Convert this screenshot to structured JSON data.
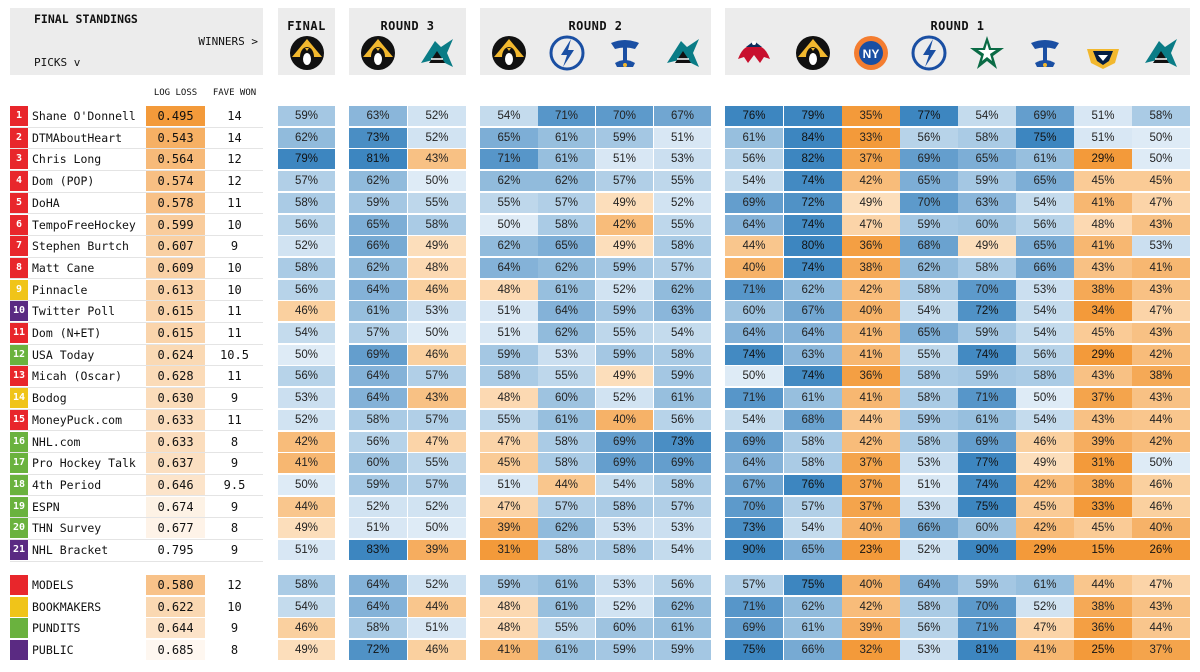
{
  "header": {
    "title": "FINAL STANDINGS",
    "winners_label": "WINNERS >",
    "picks_label": "PICKS v",
    "rounds": [
      "FINAL",
      "ROUND 3",
      "ROUND 2",
      "ROUND 1"
    ],
    "col_log_loss": "LOG LOSS",
    "col_fave_won": "FAVE WON"
  },
  "teams": {
    "final": [
      "penguins"
    ],
    "round3": [
      "penguins",
      "sharks"
    ],
    "round2": [
      "penguins",
      "lightning",
      "blues",
      "sharks"
    ],
    "round1": [
      "capitals",
      "penguins",
      "islanders",
      "lightning",
      "stars",
      "blues",
      "predators",
      "sharks"
    ]
  },
  "colors": {
    "rank_red": "#e8262b",
    "rank_yellow": "#f0c419",
    "rank_purple": "#5a2a82",
    "rank_green": "#6ab23e",
    "blue_dark": "#3d86c0",
    "orange_dark": "#f39a3a",
    "header_bg": "#ececec"
  },
  "chart_data": {
    "type": "table",
    "title": "FINAL STANDINGS",
    "columns": [
      "Rank",
      "Name",
      "LOG LOSS",
      "FAVE WON",
      "FINAL",
      "ROUND 3 (2)",
      "ROUND 2 (4)",
      "ROUND 1 (8)"
    ],
    "rows": [
      {
        "rank": "1",
        "name": "Shane O'Donnell",
        "log_loss": "0.495",
        "fave_won": "14",
        "group": "red",
        "final": [
          "59%"
        ],
        "r3": [
          "63%",
          "52%"
        ],
        "r2": [
          "54%",
          "71%",
          "70%",
          "67%"
        ],
        "r1": [
          "76%",
          "79%",
          "35%",
          "77%",
          "54%",
          "69%",
          "51%",
          "58%"
        ]
      },
      {
        "rank": "2",
        "name": "DTMAboutHeart",
        "log_loss": "0.543",
        "fave_won": "14",
        "group": "red",
        "final": [
          "62%"
        ],
        "r3": [
          "73%",
          "52%"
        ],
        "r2": [
          "65%",
          "61%",
          "59%",
          "51%"
        ],
        "r1": [
          "61%",
          "84%",
          "33%",
          "56%",
          "58%",
          "75%",
          "51%",
          "50%"
        ]
      },
      {
        "rank": "3",
        "name": "Chris Long",
        "log_loss": "0.564",
        "fave_won": "12",
        "group": "red",
        "final": [
          "79%"
        ],
        "r3": [
          "81%",
          "43%"
        ],
        "r2": [
          "71%",
          "61%",
          "51%",
          "53%"
        ],
        "r1": [
          "56%",
          "82%",
          "37%",
          "69%",
          "65%",
          "61%",
          "29%",
          "50%"
        ]
      },
      {
        "rank": "4",
        "name": "Dom (POP)",
        "log_loss": "0.574",
        "fave_won": "12",
        "group": "red",
        "final": [
          "57%"
        ],
        "r3": [
          "62%",
          "50%"
        ],
        "r2": [
          "62%",
          "62%",
          "57%",
          "55%"
        ],
        "r1": [
          "54%",
          "74%",
          "42%",
          "65%",
          "59%",
          "65%",
          "45%",
          "45%"
        ]
      },
      {
        "rank": "5",
        "name": "DoHA",
        "log_loss": "0.578",
        "fave_won": "11",
        "group": "red",
        "final": [
          "58%"
        ],
        "r3": [
          "59%",
          "55%"
        ],
        "r2": [
          "55%",
          "57%",
          "49%",
          "52%"
        ],
        "r1": [
          "69%",
          "72%",
          "49%",
          "70%",
          "63%",
          "54%",
          "41%",
          "47%"
        ]
      },
      {
        "rank": "6",
        "name": "TempoFreeHockey",
        "log_loss": "0.599",
        "fave_won": "10",
        "group": "red",
        "final": [
          "56%"
        ],
        "r3": [
          "65%",
          "58%"
        ],
        "r2": [
          "50%",
          "58%",
          "42%",
          "55%"
        ],
        "r1": [
          "64%",
          "74%",
          "47%",
          "59%",
          "60%",
          "56%",
          "48%",
          "43%"
        ]
      },
      {
        "rank": "7",
        "name": "Stephen Burtch",
        "log_loss": "0.607",
        "fave_won": "9",
        "group": "red",
        "final": [
          "52%"
        ],
        "r3": [
          "66%",
          "49%"
        ],
        "r2": [
          "62%",
          "65%",
          "49%",
          "58%"
        ],
        "r1": [
          "44%",
          "80%",
          "36%",
          "68%",
          "49%",
          "65%",
          "41%",
          "53%"
        ]
      },
      {
        "rank": "8",
        "name": "Matt Cane",
        "log_loss": "0.609",
        "fave_won": "10",
        "group": "red",
        "final": [
          "58%"
        ],
        "r3": [
          "62%",
          "48%"
        ],
        "r2": [
          "64%",
          "62%",
          "59%",
          "57%"
        ],
        "r1": [
          "40%",
          "74%",
          "38%",
          "62%",
          "58%",
          "66%",
          "43%",
          "41%"
        ]
      },
      {
        "rank": "9",
        "name": "Pinnacle",
        "log_loss": "0.613",
        "fave_won": "10",
        "group": "yellow",
        "final": [
          "56%"
        ],
        "r3": [
          "64%",
          "46%"
        ],
        "r2": [
          "48%",
          "61%",
          "52%",
          "62%"
        ],
        "r1": [
          "71%",
          "62%",
          "42%",
          "58%",
          "70%",
          "53%",
          "38%",
          "43%"
        ]
      },
      {
        "rank": "10",
        "name": "Twitter Poll",
        "log_loss": "0.615",
        "fave_won": "11",
        "group": "purple",
        "final": [
          "46%"
        ],
        "r3": [
          "61%",
          "53%"
        ],
        "r2": [
          "51%",
          "64%",
          "59%",
          "63%"
        ],
        "r1": [
          "60%",
          "67%",
          "40%",
          "54%",
          "72%",
          "54%",
          "34%",
          "47%"
        ]
      },
      {
        "rank": "11",
        "name": "Dom (N+ET)",
        "log_loss": "0.615",
        "fave_won": "11",
        "group": "red",
        "final": [
          "54%"
        ],
        "r3": [
          "57%",
          "50%"
        ],
        "r2": [
          "51%",
          "62%",
          "55%",
          "54%"
        ],
        "r1": [
          "64%",
          "64%",
          "41%",
          "65%",
          "59%",
          "54%",
          "45%",
          "43%"
        ]
      },
      {
        "rank": "12",
        "name": "USA Today",
        "log_loss": "0.624",
        "fave_won": "10.5",
        "group": "green",
        "final": [
          "50%"
        ],
        "r3": [
          "69%",
          "46%"
        ],
        "r2": [
          "59%",
          "53%",
          "59%",
          "58%"
        ],
        "r1": [
          "74%",
          "63%",
          "41%",
          "55%",
          "74%",
          "56%",
          "29%",
          "42%"
        ]
      },
      {
        "rank": "13",
        "name": "Micah (Oscar)",
        "log_loss": "0.628",
        "fave_won": "11",
        "group": "red",
        "final": [
          "56%"
        ],
        "r3": [
          "64%",
          "57%"
        ],
        "r2": [
          "58%",
          "55%",
          "49%",
          "59%"
        ],
        "r1": [
          "50%",
          "74%",
          "36%",
          "58%",
          "59%",
          "58%",
          "43%",
          "38%"
        ]
      },
      {
        "rank": "14",
        "name": "Bodog",
        "log_loss": "0.630",
        "fave_won": "9",
        "group": "yellow",
        "final": [
          "53%"
        ],
        "r3": [
          "64%",
          "43%"
        ],
        "r2": [
          "48%",
          "60%",
          "52%",
          "61%"
        ],
        "r1": [
          "71%",
          "61%",
          "41%",
          "58%",
          "71%",
          "50%",
          "37%",
          "43%"
        ]
      },
      {
        "rank": "15",
        "name": "MoneyPuck.com",
        "log_loss": "0.633",
        "fave_won": "11",
        "group": "red",
        "final": [
          "52%"
        ],
        "r3": [
          "58%",
          "57%"
        ],
        "r2": [
          "55%",
          "61%",
          "40%",
          "56%"
        ],
        "r1": [
          "54%",
          "68%",
          "44%",
          "59%",
          "61%",
          "54%",
          "43%",
          "44%"
        ]
      },
      {
        "rank": "16",
        "name": "NHL.com",
        "log_loss": "0.633",
        "fave_won": "8",
        "group": "green",
        "final": [
          "42%"
        ],
        "r3": [
          "56%",
          "47%"
        ],
        "r2": [
          "47%",
          "58%",
          "69%",
          "73%"
        ],
        "r1": [
          "69%",
          "58%",
          "42%",
          "58%",
          "69%",
          "46%",
          "39%",
          "42%"
        ]
      },
      {
        "rank": "17",
        "name": "Pro Hockey Talk",
        "log_loss": "0.637",
        "fave_won": "9",
        "group": "green",
        "final": [
          "41%"
        ],
        "r3": [
          "60%",
          "55%"
        ],
        "r2": [
          "45%",
          "58%",
          "69%",
          "69%"
        ],
        "r1": [
          "64%",
          "58%",
          "37%",
          "53%",
          "77%",
          "49%",
          "31%",
          "50%"
        ]
      },
      {
        "rank": "18",
        "name": "4th Period",
        "log_loss": "0.646",
        "fave_won": "9.5",
        "group": "green",
        "final": [
          "50%"
        ],
        "r3": [
          "59%",
          "57%"
        ],
        "r2": [
          "51%",
          "44%",
          "54%",
          "58%"
        ],
        "r1": [
          "67%",
          "76%",
          "37%",
          "51%",
          "74%",
          "42%",
          "38%",
          "46%"
        ]
      },
      {
        "rank": "19",
        "name": "ESPN",
        "log_loss": "0.674",
        "fave_won": "9",
        "group": "green",
        "final": [
          "44%"
        ],
        "r3": [
          "52%",
          "52%"
        ],
        "r2": [
          "47%",
          "57%",
          "58%",
          "57%"
        ],
        "r1": [
          "70%",
          "57%",
          "37%",
          "53%",
          "75%",
          "45%",
          "33%",
          "46%"
        ]
      },
      {
        "rank": "20",
        "name": "THN Survey",
        "log_loss": "0.677",
        "fave_won": "8",
        "group": "green",
        "final": [
          "49%"
        ],
        "r3": [
          "51%",
          "50%"
        ],
        "r2": [
          "39%",
          "62%",
          "53%",
          "53%"
        ],
        "r1": [
          "73%",
          "54%",
          "40%",
          "66%",
          "60%",
          "42%",
          "45%",
          "40%"
        ]
      },
      {
        "rank": "21",
        "name": "NHL Bracket",
        "log_loss": "0.795",
        "fave_won": "9",
        "group": "purple",
        "final": [
          "51%"
        ],
        "r3": [
          "83%",
          "39%"
        ],
        "r2": [
          "31%",
          "58%",
          "58%",
          "54%"
        ],
        "r1": [
          "90%",
          "65%",
          "23%",
          "52%",
          "90%",
          "29%",
          "15%",
          "26%"
        ]
      }
    ],
    "groups": [
      {
        "name": "MODELS",
        "log_loss": "0.580",
        "fave_won": "12",
        "group": "red",
        "final": [
          "58%"
        ],
        "r3": [
          "64%",
          "52%"
        ],
        "r2": [
          "59%",
          "61%",
          "53%",
          "56%"
        ],
        "r1": [
          "57%",
          "75%",
          "40%",
          "64%",
          "59%",
          "61%",
          "44%",
          "47%"
        ]
      },
      {
        "name": "BOOKMAKERS",
        "log_loss": "0.622",
        "fave_won": "10",
        "group": "yellow",
        "final": [
          "54%"
        ],
        "r3": [
          "64%",
          "44%"
        ],
        "r2": [
          "48%",
          "61%",
          "52%",
          "62%"
        ],
        "r1": [
          "71%",
          "62%",
          "42%",
          "58%",
          "70%",
          "52%",
          "38%",
          "43%"
        ]
      },
      {
        "name": "PUNDITS",
        "log_loss": "0.644",
        "fave_won": "9",
        "group": "green",
        "final": [
          "46%"
        ],
        "r3": [
          "58%",
          "51%"
        ],
        "r2": [
          "48%",
          "55%",
          "60%",
          "61%"
        ],
        "r1": [
          "69%",
          "61%",
          "39%",
          "56%",
          "71%",
          "47%",
          "36%",
          "44%"
        ]
      },
      {
        "name": "PUBLIC",
        "log_loss": "0.685",
        "fave_won": "8",
        "group": "purple",
        "final": [
          "49%"
        ],
        "r3": [
          "72%",
          "46%"
        ],
        "r2": [
          "41%",
          "61%",
          "59%",
          "59%"
        ],
        "r1": [
          "75%",
          "66%",
          "32%",
          "53%",
          "81%",
          "41%",
          "25%",
          "37%"
        ]
      }
    ]
  }
}
